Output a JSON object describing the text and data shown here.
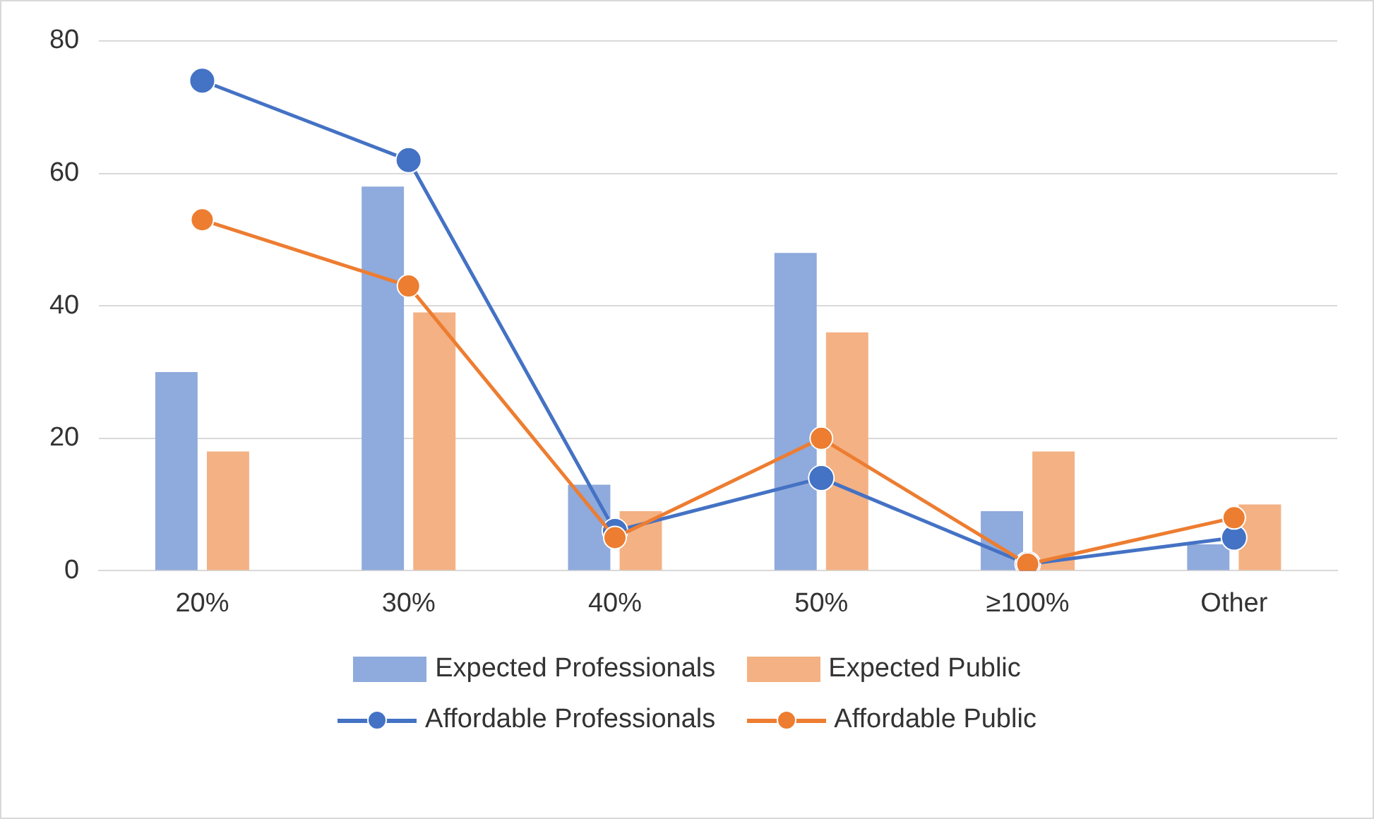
{
  "chart_data": {
    "type": "bar",
    "categories": [
      "20%",
      "30%",
      "40%",
      "50%",
      "≥100%",
      "Other"
    ],
    "series": [
      {
        "name": "Expected Professionals",
        "color": "#8faadc",
        "values": [
          30,
          58,
          13,
          48,
          9,
          4
        ]
      },
      {
        "name": "Expected Public",
        "color": "#f4b183",
        "values": [
          18,
          39,
          9,
          36,
          18,
          10
        ]
      },
      {
        "name": "Affordable Professionals",
        "type": "line",
        "color": "#4472c4",
        "values": [
          74,
          62,
          6,
          14,
          1,
          5
        ]
      },
      {
        "name": "Affordable Public",
        "type": "line",
        "color": "#ed7d31",
        "values": [
          53,
          43,
          5,
          20,
          1,
          8
        ]
      }
    ],
    "ylim": [
      0,
      80
    ],
    "yticks": [
      0,
      20,
      40,
      60,
      80
    ],
    "grid": "y",
    "legend": "bottom",
    "marker": "circle",
    "line_style": "solid"
  }
}
